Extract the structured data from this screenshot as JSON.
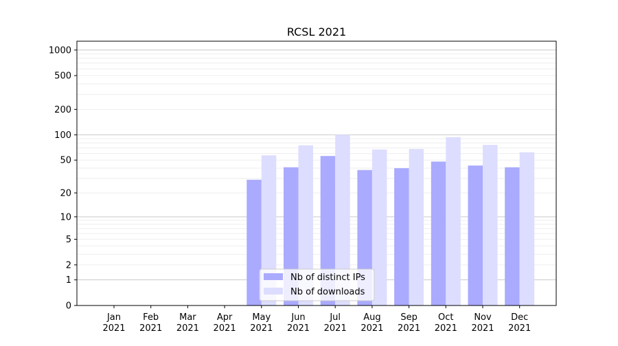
{
  "chart_data": {
    "type": "bar",
    "title": "RCSL 2021",
    "xlabel": "",
    "ylabel": "",
    "yscale": "symlog",
    "ylim": [
      0,
      1270
    ],
    "yticks": [
      0,
      1,
      2,
      5,
      10,
      20,
      50,
      100,
      200,
      500,
      1000
    ],
    "grid": true,
    "legend_position": "bottom-center",
    "categories": [
      "Jan\n2021",
      "Feb\n2021",
      "Mar\n2021",
      "Apr\n2021",
      "May\n2021",
      "Jun\n2021",
      "Jul\n2021",
      "Aug\n2021",
      "Sep\n2021",
      "Oct\n2021",
      "Nov\n2021",
      "Dec\n2021"
    ],
    "series": [
      {
        "name": "Nb of distinct IPs",
        "color": "#aaaaff",
        "values": [
          0,
          0,
          0,
          0,
          29,
          41,
          56,
          38,
          40,
          48,
          43,
          41
        ]
      },
      {
        "name": "Nb of downloads",
        "color": "#ddddff",
        "values": [
          0,
          0,
          0,
          0,
          57,
          75,
          100,
          67,
          68,
          94,
          76,
          62
        ]
      }
    ]
  }
}
